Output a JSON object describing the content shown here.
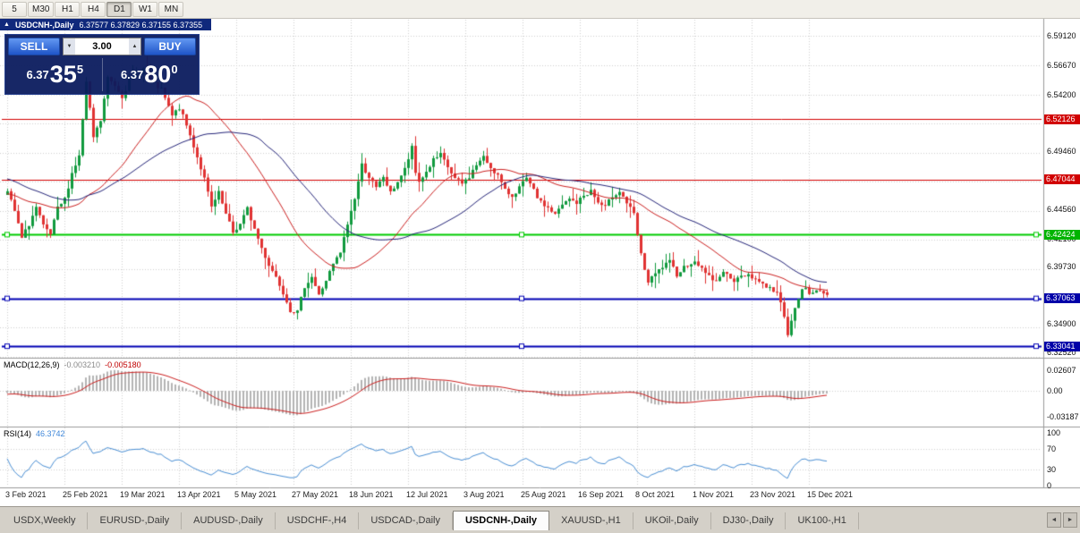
{
  "toolbar": {
    "timeframes": [
      {
        "label": "5",
        "active": false
      },
      {
        "label": "M30",
        "active": false
      },
      {
        "label": "H1",
        "active": false
      },
      {
        "label": "H4",
        "active": false
      },
      {
        "label": "D1",
        "active": true
      },
      {
        "label": "W1",
        "active": false
      },
      {
        "label": "MN",
        "active": false
      }
    ]
  },
  "chart_header": {
    "collapse": "▲",
    "title": "USDCNH-,Daily",
    "ohlc": "6.37577 6.37829 6.37155 6.37355"
  },
  "trade_panel": {
    "sell_label": "SELL",
    "buy_label": "BUY",
    "volume": "3.00",
    "spinner_up": "▲",
    "spinner_down": "▼",
    "sell_price_prefix": "6.37",
    "sell_price_big": "35",
    "sell_price_sup": "5",
    "buy_price_prefix": "6.37",
    "buy_price_big": "80",
    "buy_price_sup": "0"
  },
  "price_axis": {
    "ticks": [
      {
        "label": "6.59120",
        "price": 6.5912
      },
      {
        "label": "6.56670",
        "price": 6.5667
      },
      {
        "label": "6.54200",
        "price": 6.542
      },
      {
        "label": "6.49460",
        "price": 6.4946
      },
      {
        "label": "6.44560",
        "price": 6.4456
      },
      {
        "label": "6.42100",
        "price": 6.421
      },
      {
        "label": "6.39730",
        "price": 6.3973
      },
      {
        "label": "6.34900",
        "price": 6.349
      },
      {
        "label": "6.32520",
        "price": 6.3252
      }
    ],
    "badges": [
      {
        "label": "6.52126",
        "price": 6.52126,
        "color": "#d10000"
      },
      {
        "label": "6.47044",
        "price": 6.47044,
        "color": "#d10000"
      },
      {
        "label": "6.42424",
        "price": 6.42424,
        "color": "#00b400"
      },
      {
        "label": "6.37063",
        "price": 6.37063,
        "color": "#0000a8"
      },
      {
        "label": "6.33041",
        "price": 6.33041,
        "color": "#0000a8"
      }
    ]
  },
  "hlines": [
    {
      "price": 6.52126,
      "color": "#d40000",
      "width": 1,
      "handles": false
    },
    {
      "price": 6.47044,
      "color": "#d40000",
      "width": 1,
      "handles": false
    },
    {
      "price": 6.42424,
      "color": "#00cc00",
      "width": 2,
      "handles": true
    },
    {
      "price": 6.37063,
      "color": "#0000b4",
      "width": 2,
      "handles": true
    },
    {
      "price": 6.33041,
      "color": "#0000b4",
      "width": 2,
      "handles": true
    }
  ],
  "macd_panel": {
    "label": "MACD(12,26,9)",
    "value_main": "-0.003210",
    "value_signal": "-0.005180",
    "axis": [
      {
        "label": "0.02607",
        "value": 0.02607
      },
      {
        "label": "0.00",
        "value": 0
      },
      {
        "label": "-0.03187",
        "value": -0.03187
      }
    ]
  },
  "rsi_panel": {
    "label": "RSI(14)",
    "value": "46.3742",
    "axis": [
      {
        "label": "100",
        "value": 100
      },
      {
        "label": "70",
        "value": 70
      },
      {
        "label": "30",
        "value": 30
      },
      {
        "label": "0",
        "value": 0
      }
    ],
    "levels": [
      70,
      30
    ]
  },
  "date_axis": {
    "labels": [
      "3 Feb 2021",
      "25 Feb 2021",
      "19 Mar 2021",
      "13 Apr 2021",
      "5 May 2021",
      "27 May 2021",
      "18 Jun 2021",
      "12 Jul 2021",
      "3 Aug 2021",
      "25 Aug 2021",
      "16 Sep 2021",
      "8 Oct 2021",
      "1 Nov 2021",
      "23 Nov 2021",
      "15 Dec 2021"
    ],
    "tick_indices": [
      0,
      16,
      32,
      48,
      64,
      80,
      96,
      112,
      128,
      144,
      160,
      176,
      192,
      208,
      224
    ]
  },
  "tabs": {
    "items": [
      {
        "label": "USDX,Weekly",
        "active": false
      },
      {
        "label": "EURUSD-,Daily",
        "active": false
      },
      {
        "label": "AUDUSD-,Daily",
        "active": false
      },
      {
        "label": "USDCHF-,H4",
        "active": false
      },
      {
        "label": "USDCAD-,Daily",
        "active": false
      },
      {
        "label": "USDCNH-,Daily",
        "active": true
      },
      {
        "label": "XAUUSD-,H1",
        "active": false
      },
      {
        "label": "UKOil-,Daily",
        "active": false
      },
      {
        "label": "DJ30-,Daily",
        "active": false
      },
      {
        "label": "UK100-,H1",
        "active": false
      }
    ],
    "scroll_left": "◄",
    "scroll_right": "►"
  },
  "colors": {
    "bull": "#119a3e",
    "bear": "#e03232",
    "ma_fast": "#cc2020",
    "ma_slow": "#26267a",
    "macd_hist": "#b4b4b4",
    "macd_signal": "#cc2020",
    "rsi": "#4a8fd4",
    "grid": "#d0d0d0",
    "separator": "#9a9a9a"
  },
  "chart_data": {
    "type": "candlestick",
    "symbol": "USDCNH-",
    "timeframe": "Daily",
    "current_ohlc": {
      "open": 6.37577,
      "high": 6.37829,
      "low": 6.37155,
      "close": 6.37355
    },
    "visible_candles": 230,
    "warmup": 60,
    "price_top": 6.5945,
    "price_bottom": 6.323,
    "grid_prices": [
      6.5912,
      6.5667,
      6.5422,
      6.5177,
      6.4932,
      6.4687,
      6.4442,
      6.4197,
      6.3952,
      6.3707,
      6.3462,
      6.3217
    ],
    "ma_fast_period": 30,
    "ma_slow_period": 50,
    "macd": {
      "fast": 12,
      "slow": 26,
      "signal": 9
    },
    "rsi_period": 14,
    "close_path": [
      [
        -60,
        6.487
      ],
      [
        -45,
        6.503
      ],
      [
        -30,
        6.472
      ],
      [
        -15,
        6.452
      ],
      [
        0,
        6.46
      ],
      [
        2,
        6.444
      ],
      [
        4,
        6.421
      ],
      [
        6,
        6.433
      ],
      [
        8,
        6.447
      ],
      [
        10,
        6.431
      ],
      [
        12,
        6.424
      ],
      [
        14,
        6.446
      ],
      [
        16,
        6.454
      ],
      [
        18,
        6.476
      ],
      [
        20,
        6.49
      ],
      [
        22,
        6.552
      ],
      [
        24,
        6.506
      ],
      [
        26,
        6.52
      ],
      [
        28,
        6.556
      ],
      [
        30,
        6.55
      ],
      [
        32,
        6.541
      ],
      [
        34,
        6.553
      ],
      [
        36,
        6.559
      ],
      [
        38,
        6.564
      ],
      [
        40,
        6.553
      ],
      [
        43,
        6.546
      ],
      [
        46,
        6.524
      ],
      [
        48,
        6.531
      ],
      [
        50,
        6.516
      ],
      [
        52,
        6.499
      ],
      [
        55,
        6.471
      ],
      [
        57,
        6.447
      ],
      [
        59,
        6.459
      ],
      [
        61,
        6.441
      ],
      [
        63,
        6.426
      ],
      [
        65,
        6.433
      ],
      [
        67,
        6.446
      ],
      [
        69,
        6.429
      ],
      [
        71,
        6.413
      ],
      [
        73,
        6.399
      ],
      [
        75,
        6.389
      ],
      [
        77,
        6.376
      ],
      [
        79,
        6.361
      ],
      [
        81,
        6.359
      ],
      [
        83,
        6.381
      ],
      [
        85,
        6.389
      ],
      [
        87,
        6.373
      ],
      [
        89,
        6.386
      ],
      [
        91,
        6.399
      ],
      [
        93,
        6.409
      ],
      [
        95,
        6.433
      ],
      [
        97,
        6.455
      ],
      [
        99,
        6.483
      ],
      [
        101,
        6.473
      ],
      [
        103,
        6.463
      ],
      [
        105,
        6.473
      ],
      [
        107,
        6.459
      ],
      [
        109,
        6.469
      ],
      [
        111,
        6.479
      ],
      [
        113,
        6.497
      ],
      [
        114,
        6.476
      ],
      [
        115,
        6.469
      ],
      [
        117,
        6.477
      ],
      [
        119,
        6.487
      ],
      [
        121,
        6.491
      ],
      [
        123,
        6.481
      ],
      [
        125,
        6.471
      ],
      [
        127,
        6.467
      ],
      [
        129,
        6.473
      ],
      [
        131,
        6.483
      ],
      [
        133,
        6.489
      ],
      [
        135,
        6.481
      ],
      [
        137,
        6.474
      ],
      [
        139,
        6.461
      ],
      [
        141,
        6.457
      ],
      [
        143,
        6.464
      ],
      [
        145,
        6.471
      ],
      [
        147,
        6.461
      ],
      [
        149,
        6.451
      ],
      [
        151,
        6.447
      ],
      [
        153,
        6.441
      ],
      [
        155,
        6.449
      ],
      [
        157,
        6.454
      ],
      [
        159,
        6.451
      ],
      [
        161,
        6.457
      ],
      [
        163,
        6.461
      ],
      [
        165,
        6.451
      ],
      [
        167,
        6.447
      ],
      [
        169,
        6.457
      ],
      [
        171,
        6.461
      ],
      [
        173,
        6.451
      ],
      [
        175,
        6.441
      ],
      [
        177,
        6.407
      ],
      [
        179,
        6.384
      ],
      [
        181,
        6.391
      ],
      [
        183,
        6.397
      ],
      [
        185,
        6.401
      ],
      [
        187,
        6.391
      ],
      [
        189,
        6.397
      ],
      [
        191,
        6.401
      ],
      [
        193,
        6.399
      ],
      [
        195,
        6.393
      ],
      [
        197,
        6.385
      ],
      [
        199,
        6.389
      ],
      [
        201,
        6.393
      ],
      [
        203,
        6.385
      ],
      [
        205,
        6.389
      ],
      [
        207,
        6.391
      ],
      [
        209,
        6.387
      ],
      [
        211,
        6.383
      ],
      [
        213,
        6.379
      ],
      [
        215,
        6.375
      ],
      [
        217,
        6.357
      ],
      [
        218,
        6.341
      ],
      [
        219,
        6.351
      ],
      [
        220,
        6.361
      ],
      [
        221,
        6.371
      ],
      [
        222,
        6.377
      ],
      [
        223,
        6.379
      ],
      [
        224,
        6.375
      ],
      [
        225,
        6.377
      ],
      [
        226,
        6.379
      ],
      [
        227,
        6.375
      ],
      [
        228,
        6.374
      ],
      [
        229,
        6.3736
      ]
    ]
  }
}
